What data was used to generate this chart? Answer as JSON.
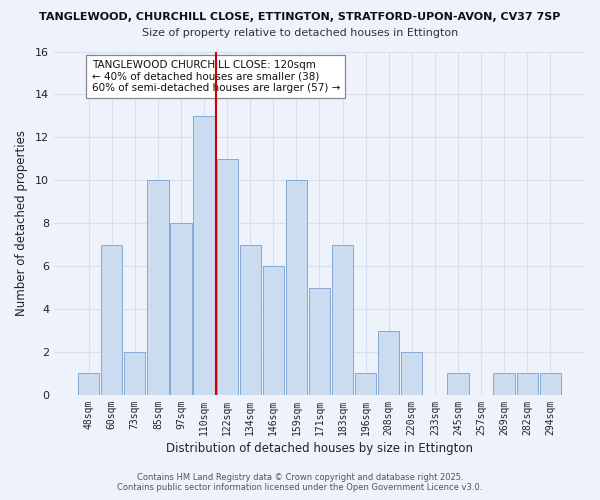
{
  "title_line1": "TANGLEWOOD, CHURCHILL CLOSE, ETTINGTON, STRATFORD-UPON-AVON, CV37 7SP",
  "title_line2": "Size of property relative to detached houses in Ettington",
  "xlabel": "Distribution of detached houses by size in Ettington",
  "ylabel": "Number of detached properties",
  "bar_labels": [
    "48sqm",
    "60sqm",
    "73sqm",
    "85sqm",
    "97sqm",
    "110sqm",
    "122sqm",
    "134sqm",
    "146sqm",
    "159sqm",
    "171sqm",
    "183sqm",
    "196sqm",
    "208sqm",
    "220sqm",
    "233sqm",
    "245sqm",
    "257sqm",
    "269sqm",
    "282sqm",
    "294sqm"
  ],
  "bar_values": [
    1,
    7,
    2,
    10,
    8,
    13,
    11,
    7,
    6,
    10,
    5,
    7,
    1,
    3,
    2,
    0,
    1,
    0,
    1,
    1,
    1
  ],
  "bar_color": "#ccdcf0",
  "bar_edgecolor": "#85aad4",
  "vline_color": "#cc0000",
  "annotation_title": "TANGLEWOOD CHURCHILL CLOSE: 120sqm",
  "annotation_line2": "← 40% of detached houses are smaller (38)",
  "annotation_line3": "60% of semi-detached houses are larger (57) →",
  "ylim": [
    0,
    16
  ],
  "yticks": [
    0,
    2,
    4,
    6,
    8,
    10,
    12,
    14,
    16
  ],
  "background_color": "#eef2fa",
  "grid_color": "#d8e0ef",
  "footer_line1": "Contains HM Land Registry data © Crown copyright and database right 2025.",
  "footer_line2": "Contains public sector information licensed under the Open Government Licence v3.0."
}
